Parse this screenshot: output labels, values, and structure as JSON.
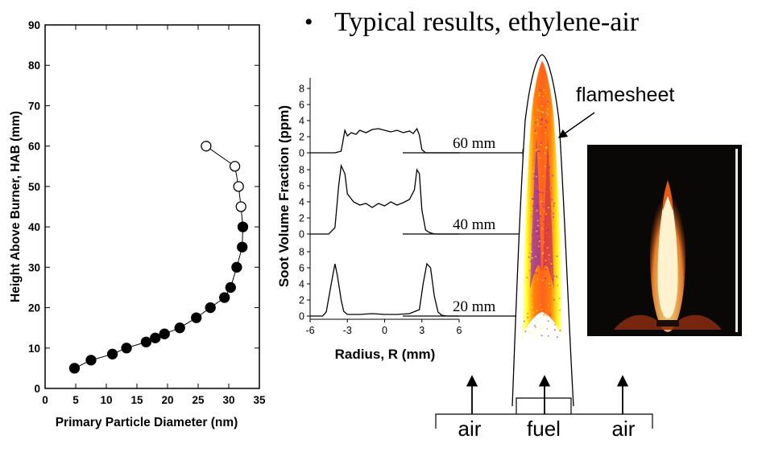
{
  "slide": {
    "bullet": "•",
    "heading": "Typical results, ethylene-air"
  },
  "chart_data": [
    {
      "type": "scatter",
      "title": "",
      "xlabel": "Primary Particle Diameter (nm)",
      "ylabel": "Height Above Burner, HAB (mm)",
      "xlim": [
        0,
        35
      ],
      "ylim": [
        0,
        90
      ],
      "xticks": [
        0,
        5,
        10,
        15,
        20,
        25,
        30,
        35
      ],
      "yticks": [
        0,
        10,
        20,
        30,
        40,
        50,
        60,
        70,
        80,
        90
      ],
      "grid": false,
      "series": [
        {
          "marker": "filled-circle",
          "points": [
            [
              4.8,
              5
            ],
            [
              7.5,
              7
            ],
            [
              11,
              8.5
            ],
            [
              13.3,
              10
            ],
            [
              16.5,
              11.5
            ],
            [
              18,
              12.5
            ],
            [
              19.5,
              13.5
            ],
            [
              22,
              15
            ],
            [
              24.7,
              17.5
            ],
            [
              27,
              20
            ],
            [
              29.3,
              22.5
            ],
            [
              30.3,
              25
            ],
            [
              31.3,
              30
            ],
            [
              32.2,
              35
            ],
            [
              32.3,
              40
            ]
          ]
        },
        {
          "marker": "open-circle",
          "points": [
            [
              32,
              45
            ],
            [
              31.6,
              50
            ],
            [
              31,
              55
            ],
            [
              26.3,
              60
            ]
          ]
        }
      ]
    },
    {
      "type": "line",
      "title": "",
      "xlabel": "Radius, R (mm)",
      "ylabel": "Soot Volume Fraction (ppm)",
      "xlim": [
        -6,
        6
      ],
      "xticks": [
        -6,
        -3,
        0,
        3,
        6
      ],
      "panel_ylim": [
        0,
        9
      ],
      "panel_yticks": [
        0,
        2,
        4,
        6,
        8
      ],
      "panels": [
        {
          "label": "60 mm",
          "x": [
            -6,
            -4,
            -3.5,
            -3.2,
            -3,
            -2.7,
            -2.3,
            -2,
            -1.5,
            -1,
            -0.5,
            0,
            0.5,
            1,
            1.5,
            2,
            2.3,
            2.6,
            2.8,
            3,
            3.3,
            4,
            6
          ],
          "y": [
            0,
            0,
            0.2,
            2.8,
            2.1,
            2.5,
            2.3,
            2.8,
            2.5,
            2.9,
            3.0,
            2.8,
            2.6,
            2.8,
            2.5,
            2.7,
            2.4,
            3.0,
            2.2,
            0.4,
            0,
            0,
            0
          ]
        },
        {
          "label": "40 mm",
          "x": [
            -6,
            -4.5,
            -4,
            -3.7,
            -3.5,
            -3.2,
            -3,
            -2.5,
            -2,
            -1.5,
            -1,
            -0.5,
            0,
            0.5,
            1,
            1.5,
            2,
            2.4,
            2.6,
            2.8,
            3,
            3.3,
            3.6,
            4,
            6
          ],
          "y": [
            0,
            0,
            0.8,
            6,
            8.5,
            7.5,
            5,
            4,
            3.6,
            3.8,
            3.3,
            3.8,
            3.5,
            4.0,
            3.6,
            3.9,
            4.3,
            5.5,
            8,
            7.5,
            3,
            0.5,
            0.2,
            0,
            0
          ]
        },
        {
          "label": "20 mm",
          "x": [
            -6,
            -5,
            -4.7,
            -4.3,
            -4,
            -3.8,
            -3.5,
            -3.3,
            -3,
            -2,
            -1,
            0,
            1,
            2,
            2.8,
            3.1,
            3.4,
            3.7,
            4,
            4.3,
            4.6,
            5,
            6
          ],
          "y": [
            0,
            0,
            0.5,
            4,
            6.5,
            5,
            2,
            0.6,
            0.2,
            0.2,
            0.3,
            0.2,
            0.2,
            0.3,
            0.8,
            4,
            6.5,
            6,
            2.5,
            0.5,
            0.1,
            0,
            0
          ]
        }
      ]
    }
  ],
  "flame_diagram": {
    "flamesheet_label": "flamesheet",
    "air_left_label": "air",
    "fuel_label": "fuel",
    "air_right_label": "air",
    "colors": {
      "outer": "#ffff1a",
      "middle": "#ff6a00",
      "core": "#7a1fd6",
      "inner": "#2a2aff"
    }
  },
  "photo": {
    "background": "#0a0806",
    "flame_colors": [
      "#fff6d8",
      "#ffd27a",
      "#ff8a2a",
      "#d8461a"
    ]
  }
}
